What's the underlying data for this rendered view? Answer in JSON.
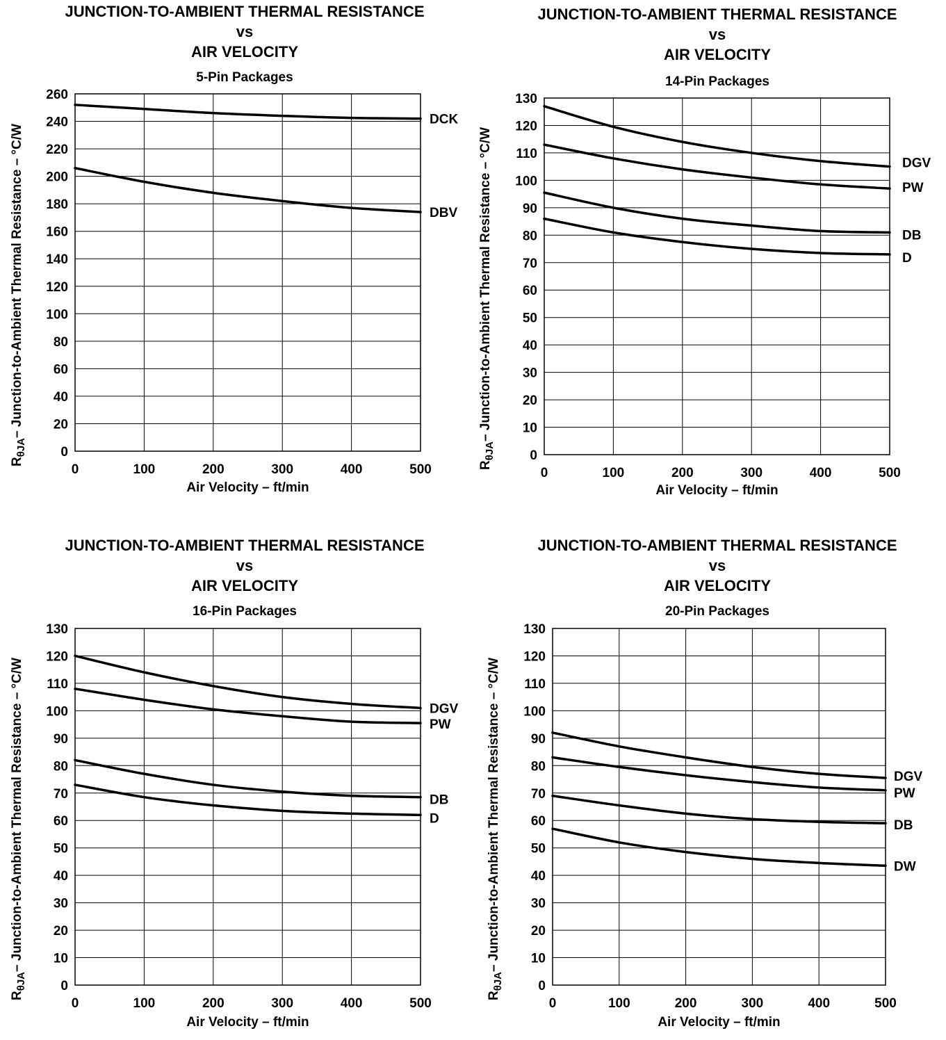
{
  "title_lines": [
    "JUNCTION-TO-AMBIENT THERMAL RESISTANCE",
    "vs",
    "AIR VELOCITY"
  ],
  "ylabel": {
    "main": "R",
    "sub": "θJA",
    "rest": "– Junction-to-Ambient Thermal Resistance – °C/W"
  },
  "xlabel": "Air Velocity – ft/min",
  "chart_data": [
    {
      "type": "line",
      "subtitle": "5-Pin Packages",
      "xlim": [
        0,
        500
      ],
      "ylim": [
        0,
        260
      ],
      "xticks": [
        0,
        100,
        200,
        300,
        400,
        500
      ],
      "yticks": [
        0,
        20,
        40,
        60,
        80,
        100,
        120,
        140,
        160,
        180,
        200,
        220,
        240,
        260
      ],
      "grid": true,
      "x": [
        0,
        100,
        200,
        300,
        400,
        500
      ],
      "series": [
        {
          "name": "DCK",
          "values": [
            252,
            249,
            246,
            244,
            242.5,
            242
          ]
        },
        {
          "name": "DBV",
          "values": [
            206,
            196,
            188,
            182,
            177,
            174
          ]
        }
      ]
    },
    {
      "type": "line",
      "subtitle": "14-Pin Packages",
      "xlim": [
        0,
        500
      ],
      "ylim": [
        0,
        130
      ],
      "xticks": [
        0,
        100,
        200,
        300,
        400,
        500
      ],
      "yticks": [
        0,
        10,
        20,
        30,
        40,
        50,
        60,
        70,
        80,
        90,
        100,
        110,
        120,
        130
      ],
      "grid": true,
      "x": [
        0,
        100,
        200,
        300,
        400,
        500
      ],
      "series": [
        {
          "name": "DGV",
          "values": [
            127,
            119.5,
            114,
            110,
            107,
            105
          ]
        },
        {
          "name": "PW",
          "values": [
            113,
            108,
            104,
            101,
            98.5,
            97
          ]
        },
        {
          "name": "DB",
          "values": [
            95.5,
            90,
            86,
            83.5,
            81.5,
            81
          ]
        },
        {
          "name": "D",
          "values": [
            86,
            81,
            77.5,
            75,
            73.5,
            73
          ]
        }
      ]
    },
    {
      "type": "line",
      "subtitle": "16-Pin Packages",
      "xlim": [
        0,
        500
      ],
      "ylim": [
        0,
        130
      ],
      "xticks": [
        0,
        100,
        200,
        300,
        400,
        500
      ],
      "yticks": [
        0,
        10,
        20,
        30,
        40,
        50,
        60,
        70,
        80,
        90,
        100,
        110,
        120,
        130
      ],
      "grid": true,
      "x": [
        0,
        100,
        200,
        300,
        400,
        500
      ],
      "series": [
        {
          "name": "DGV",
          "values": [
            120,
            114,
            109,
            105,
            102.5,
            101
          ]
        },
        {
          "name": "PW",
          "values": [
            108,
            104,
            100.5,
            98,
            96,
            95.5
          ]
        },
        {
          "name": "DB",
          "values": [
            82,
            77,
            73,
            70.5,
            69,
            68.5
          ]
        },
        {
          "name": "D",
          "values": [
            73,
            68.5,
            65.5,
            63.5,
            62.5,
            62
          ]
        }
      ]
    },
    {
      "type": "line",
      "subtitle": "20-Pin Packages",
      "xlim": [
        0,
        500
      ],
      "ylim": [
        0,
        130
      ],
      "xticks": [
        0,
        100,
        200,
        300,
        400,
        500
      ],
      "yticks": [
        0,
        10,
        20,
        30,
        40,
        50,
        60,
        70,
        80,
        90,
        100,
        110,
        120,
        130
      ],
      "grid": true,
      "x": [
        0,
        100,
        200,
        300,
        400,
        500
      ],
      "series": [
        {
          "name": "DGV",
          "values": [
            92,
            87,
            83,
            79.5,
            77,
            75.5
          ]
        },
        {
          "name": "PW",
          "values": [
            83,
            79.5,
            76.5,
            74,
            72,
            71
          ]
        },
        {
          "name": "DB",
          "values": [
            69,
            65.5,
            62.5,
            60.5,
            59.5,
            59
          ]
        },
        {
          "name": "DW",
          "values": [
            57,
            52,
            48.5,
            46,
            44.5,
            43.5
          ]
        }
      ]
    }
  ]
}
